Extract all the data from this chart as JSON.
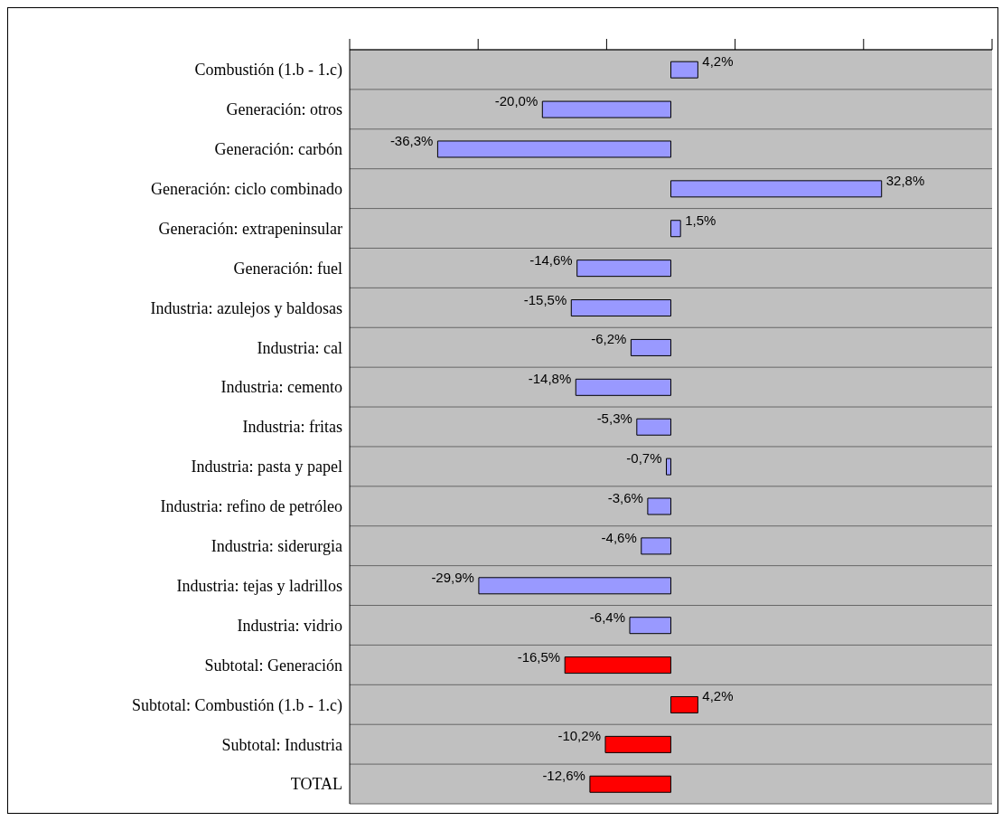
{
  "chart_data": {
    "type": "bar",
    "orientation": "horizontal",
    "categories": [
      "Combustión (1.b - 1.c)",
      "Generación: otros",
      "Generación: carbón",
      "Generación: ciclo combinado",
      "Generación: extrapeninsular",
      "Generación: fuel",
      "Industria: azulejos y baldosas",
      "Industria: cal",
      "Industria: cemento",
      "Industria: fritas",
      "Industria: pasta y papel",
      "Industria: refino de petróleo",
      "Industria: siderurgia",
      "Industria: tejas y ladrillos",
      "Industria: vidrio",
      "Subtotal: Generación",
      "Subtotal: Combustión (1.b - 1.c)",
      "Subtotal: Industria",
      "TOTAL"
    ],
    "values": [
      4.2,
      -20.0,
      -36.3,
      32.8,
      1.5,
      -14.6,
      -15.5,
      -6.2,
      -14.8,
      -5.3,
      -0.7,
      -3.6,
      -4.6,
      -29.9,
      -6.4,
      -16.5,
      4.2,
      -10.2,
      -12.6
    ],
    "value_labels": [
      "4,2%",
      "-20,0%",
      "-36,3%",
      "32,8%",
      "1,5%",
      "-14,6%",
      "-15,5%",
      "-6,2%",
      "-14,8%",
      "-5,3%",
      "-0,7%",
      "-3,6%",
      "-4,6%",
      "-29,9%",
      "-6,4%",
      "-16,5%",
      "4,2%",
      "-10,2%",
      "-12,6%"
    ],
    "colors": [
      "#9999ff",
      "#9999ff",
      "#9999ff",
      "#9999ff",
      "#9999ff",
      "#9999ff",
      "#9999ff",
      "#9999ff",
      "#9999ff",
      "#9999ff",
      "#9999ff",
      "#9999ff",
      "#9999ff",
      "#9999ff",
      "#9999ff",
      "#ff0000",
      "#ff0000",
      "#ff0000",
      "#ff0000"
    ],
    "xlim": [
      -50,
      50
    ],
    "xticks": [
      {
        "value": -50,
        "label": null
      },
      {
        "value": -30,
        "label": null
      },
      {
        "value": -10,
        "label": null
      },
      {
        "value": 10,
        "label": null
      },
      {
        "value": 30,
        "label": null
      },
      {
        "value": 50,
        "label": null
      }
    ],
    "tick_labels": "y",
    "grid": "y"
  }
}
